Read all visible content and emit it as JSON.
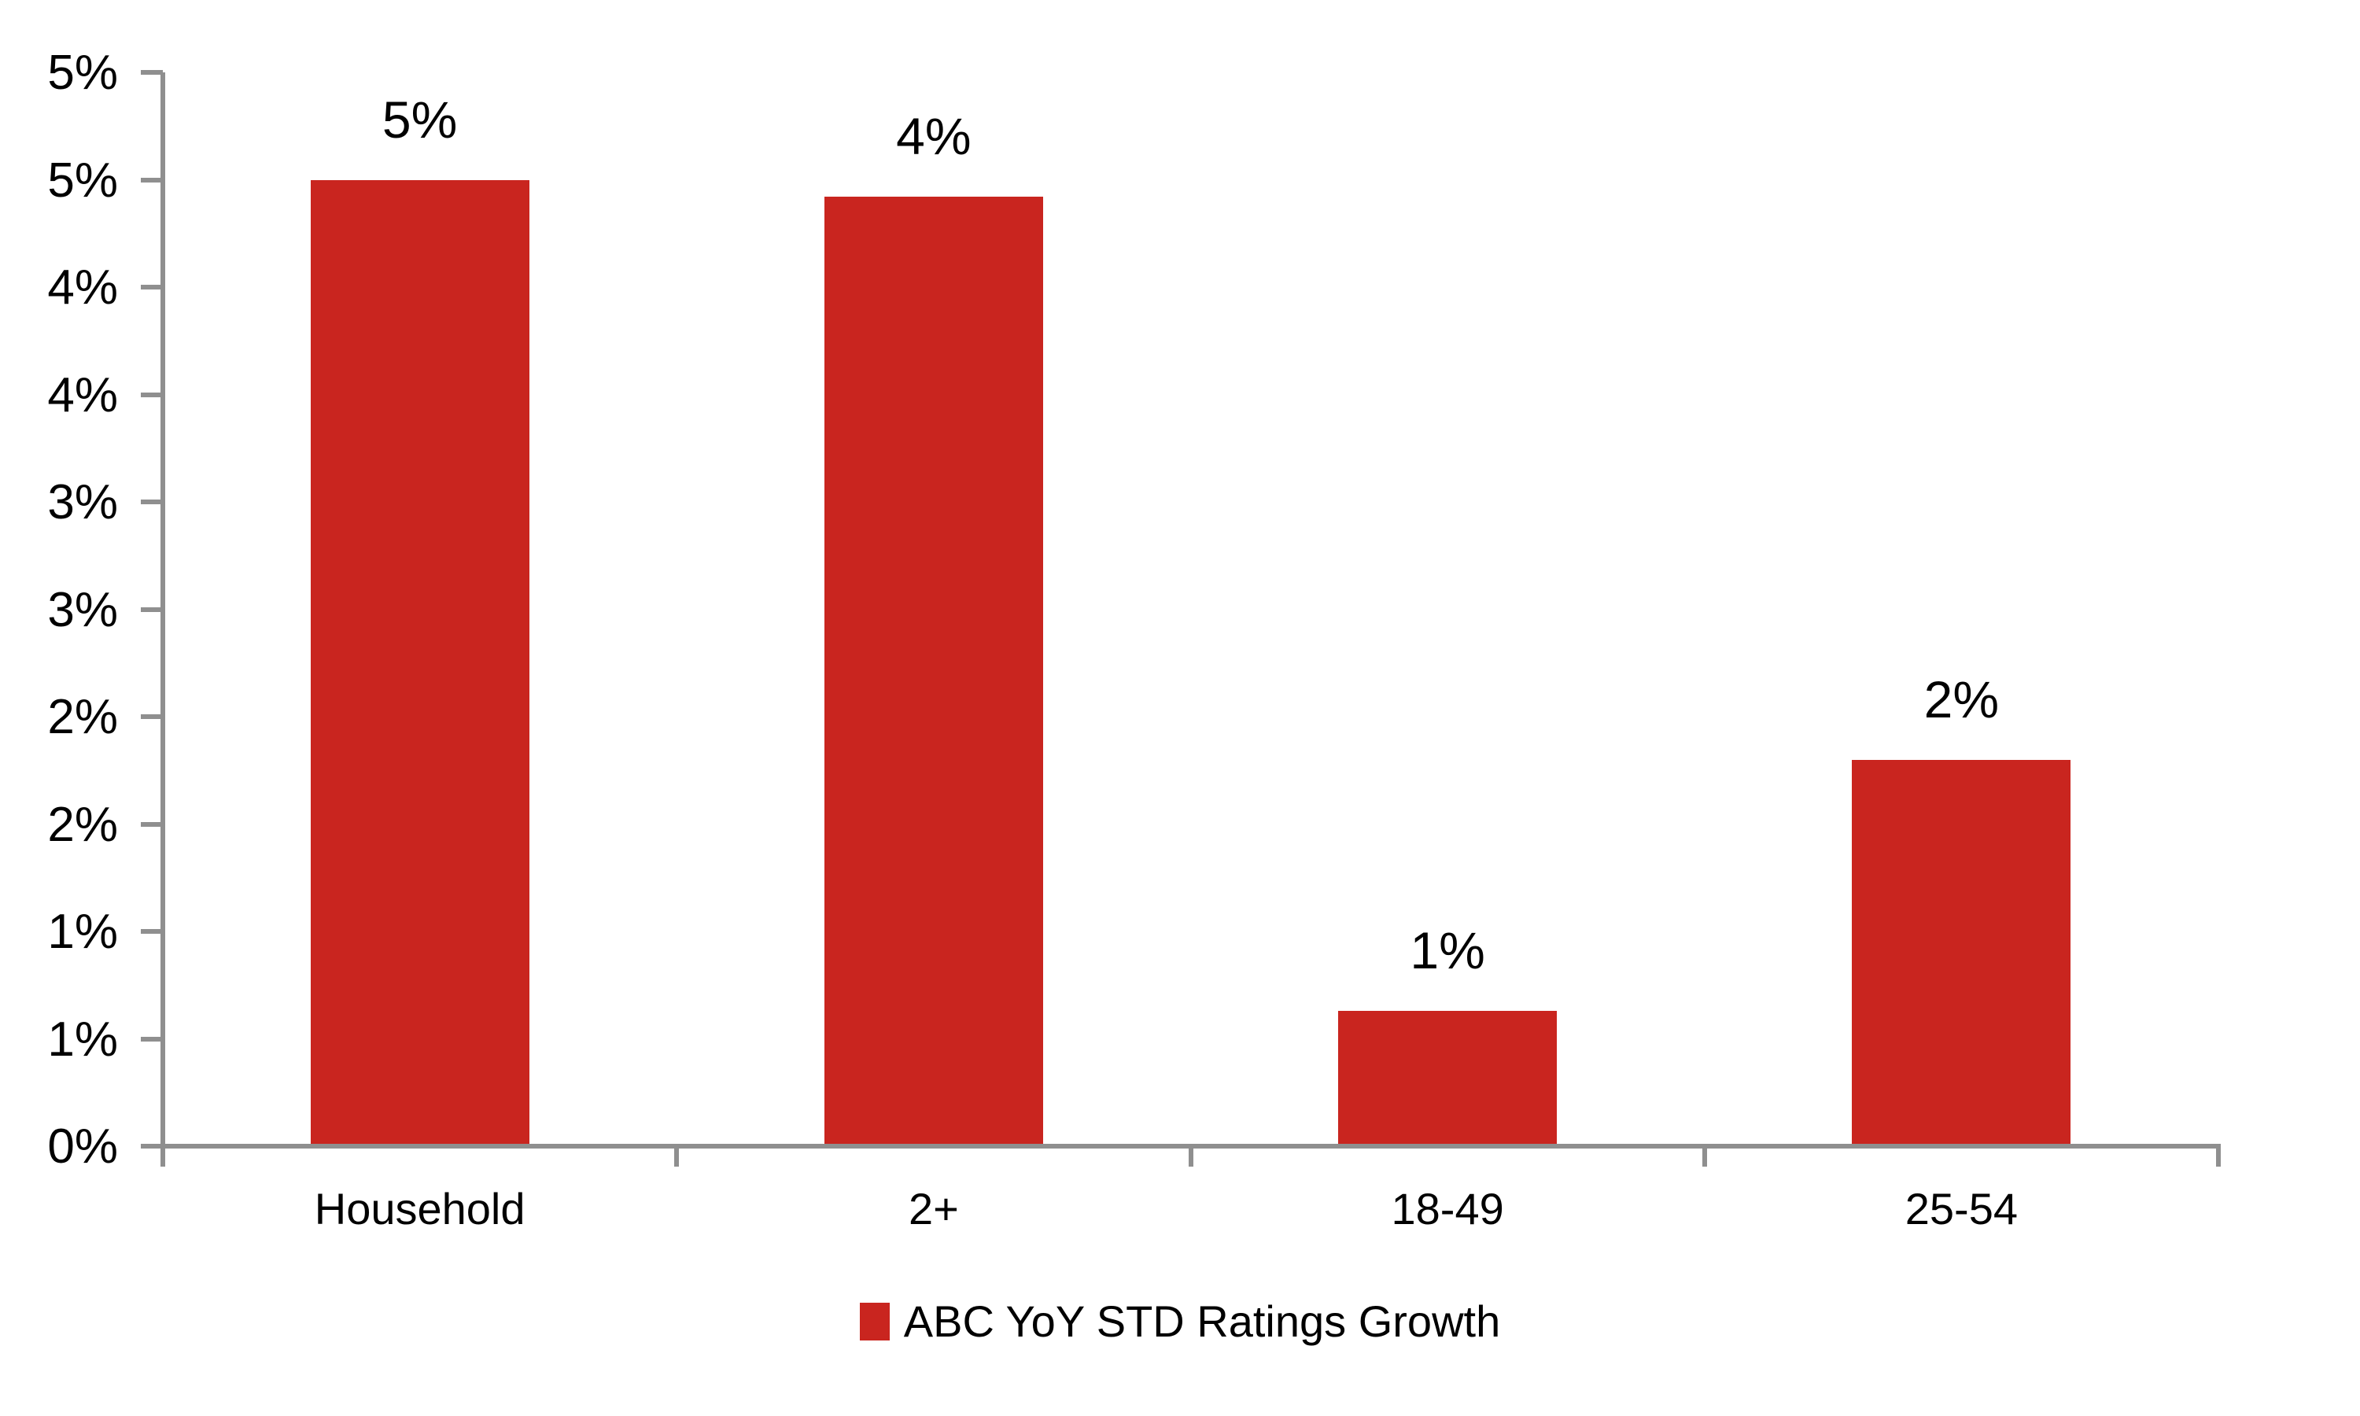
{
  "chart_data": {
    "type": "bar",
    "title": "",
    "categories": [
      "Household",
      "2+",
      "18-49",
      "25-54"
    ],
    "values": [
      4.5,
      4.42,
      0.63,
      1.8
    ],
    "bar_value_labels": [
      "5%",
      "4%",
      "1%",
      "2%"
    ],
    "series": [
      {
        "name": "ABC YoY STD Ratings Growth",
        "values": [
          4.5,
          4.42,
          0.63,
          1.8
        ]
      }
    ],
    "xlabel": "",
    "ylabel": "",
    "ylim": [
      0,
      5
    ],
    "y_tick_step": 0.5,
    "y_tick_labels_bottom_to_top": [
      "0%",
      "1%",
      "1%",
      "2%",
      "2%",
      "3%",
      "3%",
      "4%",
      "4%",
      "5%",
      "5%"
    ],
    "grid": false,
    "legend_position": "bottom"
  },
  "legend": {
    "label": "ABC YoY STD Ratings Growth"
  },
  "colors": {
    "bar": "#C9251F",
    "axis": "#8F8F8F",
    "text": "#000000",
    "background": "#FFFFFF"
  }
}
